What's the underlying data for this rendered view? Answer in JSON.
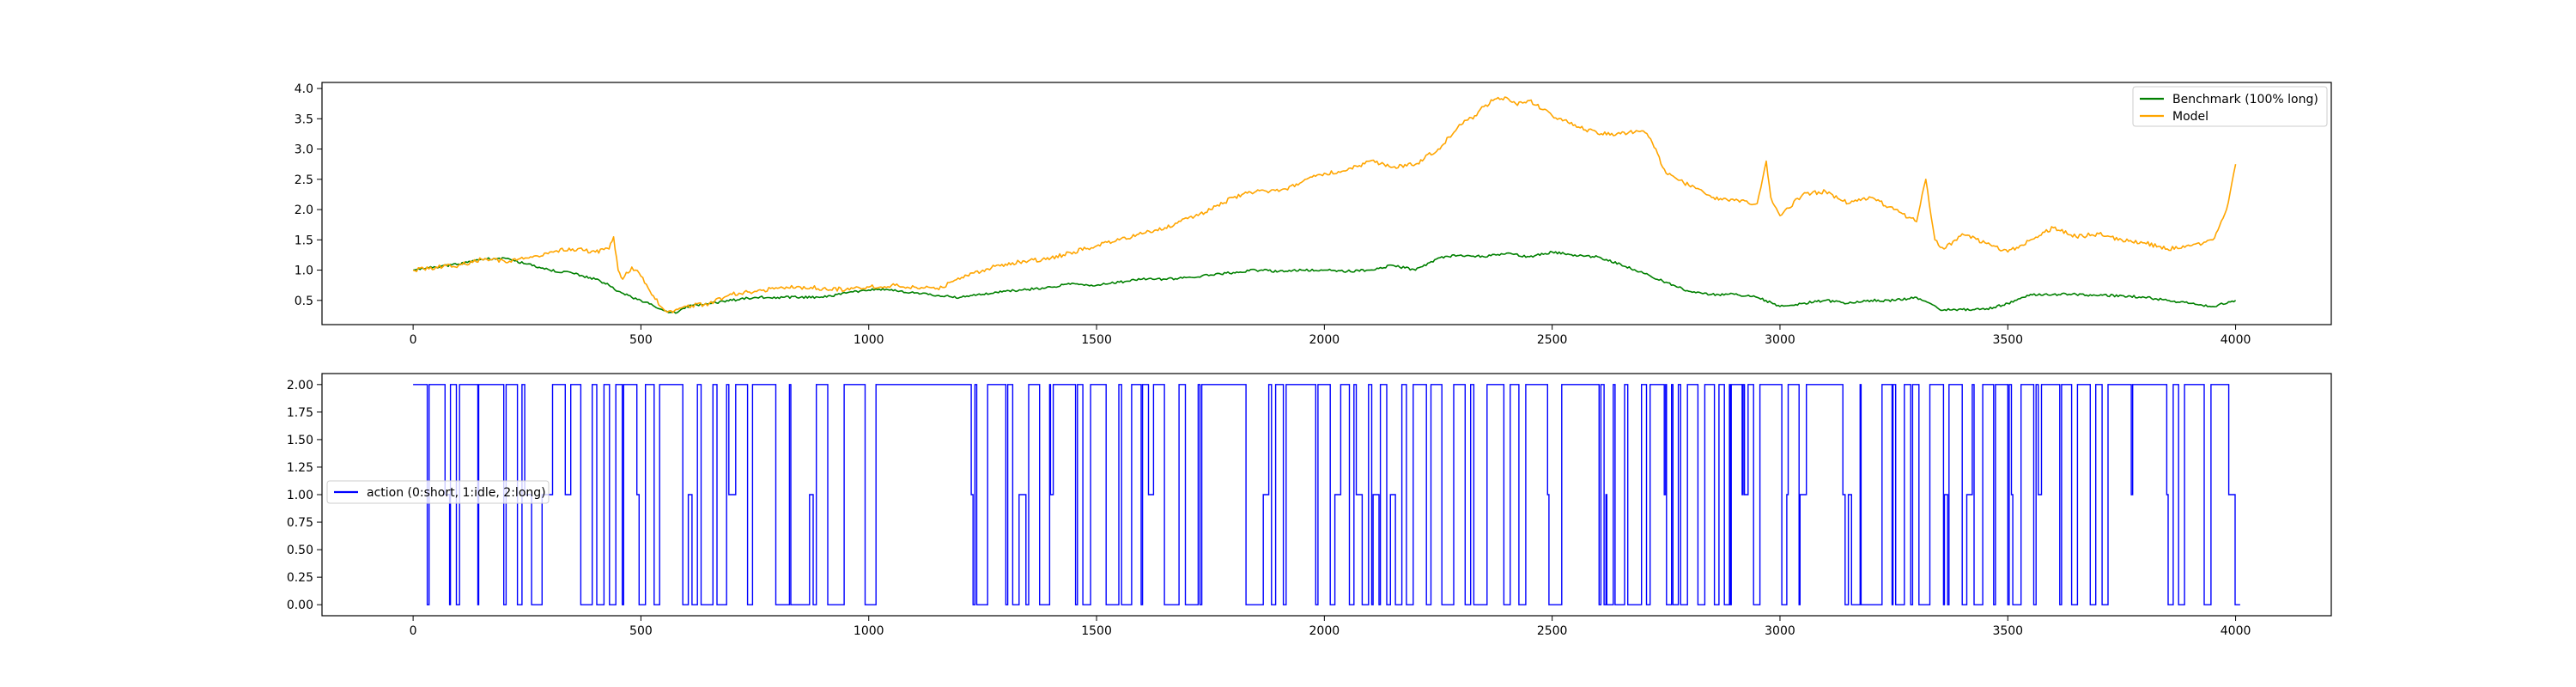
{
  "chart_data": [
    {
      "type": "line",
      "title": "",
      "xlabel": "",
      "ylabel": "",
      "xlim": [
        -200,
        4210
      ],
      "ylim": [
        0.1,
        4.1
      ],
      "xticks": [
        0,
        500,
        1000,
        1500,
        2000,
        2500,
        3000,
        3500,
        4000
      ],
      "xtick_labels": [
        "0",
        "500",
        "1000",
        "1500",
        "2000",
        "2500",
        "3000",
        "3500",
        "4000"
      ],
      "yticks": [
        0.5,
        1.0,
        1.5,
        2.0,
        2.5,
        3.0,
        3.5,
        4.0
      ],
      "ytick_labels": [
        "0.5",
        "1.0",
        "1.5",
        "2.0",
        "2.5",
        "3.0",
        "3.5",
        "4.0"
      ],
      "grid": false,
      "legend_position": "upper right",
      "series": [
        {
          "name": "Benchmark (100% long)",
          "color": "#008000",
          "x": [
            0,
            50,
            100,
            150,
            200,
            250,
            300,
            350,
            400,
            430,
            450,
            480,
            500,
            530,
            560,
            580,
            600,
            650,
            700,
            750,
            800,
            850,
            900,
            950,
            1000,
            1050,
            1100,
            1150,
            1200,
            1250,
            1300,
            1350,
            1400,
            1450,
            1500,
            1550,
            1600,
            1650,
            1700,
            1750,
            1800,
            1850,
            1900,
            1950,
            2000,
            2050,
            2100,
            2150,
            2200,
            2250,
            2300,
            2350,
            2400,
            2450,
            2500,
            2550,
            2600,
            2650,
            2700,
            2750,
            2800,
            2850,
            2900,
            2950,
            3000,
            3050,
            3100,
            3150,
            3200,
            3250,
            3300,
            3350,
            3400,
            3450,
            3500,
            3550,
            3600,
            3650,
            3700,
            3750,
            3800,
            3850,
            3900,
            3950,
            4000
          ],
          "values": [
            1.0,
            1.05,
            1.1,
            1.18,
            1.2,
            1.1,
            1.0,
            0.95,
            0.85,
            0.75,
            0.65,
            0.55,
            0.5,
            0.4,
            0.3,
            0.3,
            0.4,
            0.45,
            0.5,
            0.55,
            0.55,
            0.55,
            0.55,
            0.62,
            0.67,
            0.68,
            0.62,
            0.58,
            0.55,
            0.6,
            0.65,
            0.68,
            0.72,
            0.78,
            0.75,
            0.8,
            0.85,
            0.85,
            0.88,
            0.92,
            0.96,
            1.0,
            0.98,
            1.0,
            1.0,
            0.98,
            1.0,
            1.08,
            1.0,
            1.2,
            1.25,
            1.22,
            1.28,
            1.22,
            1.3,
            1.25,
            1.22,
            1.1,
            0.95,
            0.8,
            0.65,
            0.6,
            0.6,
            0.55,
            0.4,
            0.45,
            0.5,
            0.45,
            0.5,
            0.5,
            0.55,
            0.35,
            0.35,
            0.35,
            0.45,
            0.6,
            0.6,
            0.6,
            0.58,
            0.58,
            0.55,
            0.5,
            0.45,
            0.4,
            0.5
          ]
        },
        {
          "name": "Model",
          "color": "#ffa500",
          "x": [
            0,
            50,
            100,
            150,
            200,
            250,
            300,
            350,
            400,
            430,
            440,
            450,
            460,
            480,
            500,
            520,
            550,
            570,
            600,
            650,
            700,
            750,
            800,
            850,
            900,
            950,
            1000,
            1050,
            1100,
            1150,
            1200,
            1250,
            1300,
            1350,
            1400,
            1450,
            1500,
            1550,
            1600,
            1650,
            1700,
            1750,
            1800,
            1850,
            1900,
            1950,
            2000,
            2050,
            2100,
            2150,
            2200,
            2250,
            2300,
            2330,
            2350,
            2370,
            2400,
            2420,
            2450,
            2480,
            2500,
            2550,
            2600,
            2650,
            2700,
            2720,
            2750,
            2800,
            2850,
            2900,
            2950,
            2970,
            2980,
            3000,
            3050,
            3100,
            3150,
            3200,
            3250,
            3300,
            3320,
            3340,
            3360,
            3400,
            3450,
            3500,
            3550,
            3600,
            3650,
            3700,
            3750,
            3800,
            3850,
            3900,
            3950,
            3980,
            4000
          ],
          "values": [
            1.0,
            1.05,
            1.08,
            1.18,
            1.15,
            1.2,
            1.3,
            1.35,
            1.3,
            1.35,
            1.55,
            1.0,
            0.85,
            1.05,
            0.9,
            0.65,
            0.35,
            0.3,
            0.4,
            0.45,
            0.6,
            0.65,
            0.7,
            0.72,
            0.7,
            0.68,
            0.72,
            0.75,
            0.72,
            0.7,
            0.85,
            1.0,
            1.1,
            1.15,
            1.2,
            1.3,
            1.4,
            1.5,
            1.6,
            1.7,
            1.85,
            2.0,
            2.2,
            2.3,
            2.3,
            2.45,
            2.6,
            2.65,
            2.8,
            2.7,
            2.75,
            3.0,
            3.4,
            3.55,
            3.7,
            3.8,
            3.85,
            3.75,
            3.8,
            3.65,
            3.55,
            3.4,
            3.25,
            3.25,
            3.3,
            3.1,
            2.6,
            2.4,
            2.2,
            2.15,
            2.1,
            2.8,
            2.2,
            1.9,
            2.25,
            2.3,
            2.1,
            2.2,
            2.0,
            1.8,
            2.5,
            1.5,
            1.35,
            1.6,
            1.45,
            1.3,
            1.5,
            1.7,
            1.55,
            1.6,
            1.5,
            1.45,
            1.35,
            1.4,
            1.5,
            2.0,
            2.75
          ]
        }
      ]
    },
    {
      "type": "line",
      "title": "",
      "xlabel": "",
      "ylabel": "",
      "xlim": [
        -200,
        4210
      ],
      "ylim": [
        -0.1,
        2.1
      ],
      "xticks": [
        0,
        500,
        1000,
        1500,
        2000,
        2500,
        3000,
        3500,
        4000
      ],
      "xtick_labels": [
        "0",
        "500",
        "1000",
        "1500",
        "2000",
        "2500",
        "3000",
        "3500",
        "4000"
      ],
      "yticks": [
        0.0,
        0.25,
        0.5,
        0.75,
        1.0,
        1.25,
        1.5,
        1.75,
        2.0
      ],
      "ytick_labels": [
        "0.00",
        "0.25",
        "0.50",
        "0.75",
        "1.00",
        "1.25",
        "1.50",
        "1.75",
        "2.00"
      ],
      "grid": false,
      "legend_position": "center left",
      "series": [
        {
          "name": "action (0:short, 1:idle, 2:long)",
          "color": "#0000ff",
          "x_start": 0,
          "x_end": 4010,
          "values_allowed": [
            0,
            1,
            2
          ]
        }
      ]
    }
  ]
}
